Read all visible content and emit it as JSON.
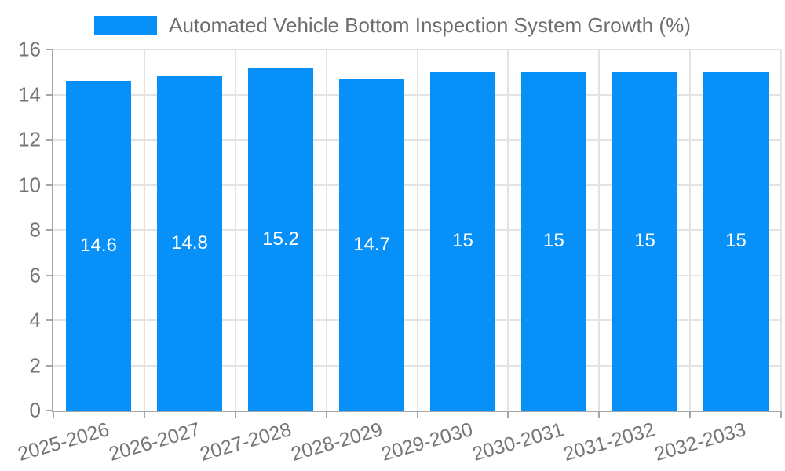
{
  "legend": {
    "label": "Automated Vehicle Bottom Inspection System Growth (%)"
  },
  "colors": {
    "bar": "#0790F8",
    "axis": "#a6a6a6",
    "grid": "#e3e3e3",
    "tick_label": "#757575",
    "legend_text": "#6e6e6e",
    "bar_label": "#ffffff",
    "background": "#ffffff"
  },
  "chart_data": {
    "type": "bar",
    "title": "Automated Vehicle Bottom Inspection System Growth (%)",
    "categories": [
      "2025-2026",
      "2026-2027",
      "2027-2028",
      "2028-2029",
      "2029-2030",
      "2030-2031",
      "2031-2032",
      "2032-2033"
    ],
    "values": [
      14.6,
      14.8,
      15.2,
      14.7,
      15,
      15,
      15,
      15
    ],
    "series_name": "Automated Vehicle Bottom Inspection System Growth (%)",
    "xlabel": "",
    "ylabel": "",
    "ylim": [
      0,
      16
    ],
    "yticks": [
      0,
      2,
      4,
      6,
      8,
      10,
      12,
      14,
      16
    ],
    "grid": true,
    "legend_position": "top-center",
    "bar_labels_shown": true,
    "bar_label_position": "middle-of-bar",
    "x_label_rotation_deg": -16
  }
}
